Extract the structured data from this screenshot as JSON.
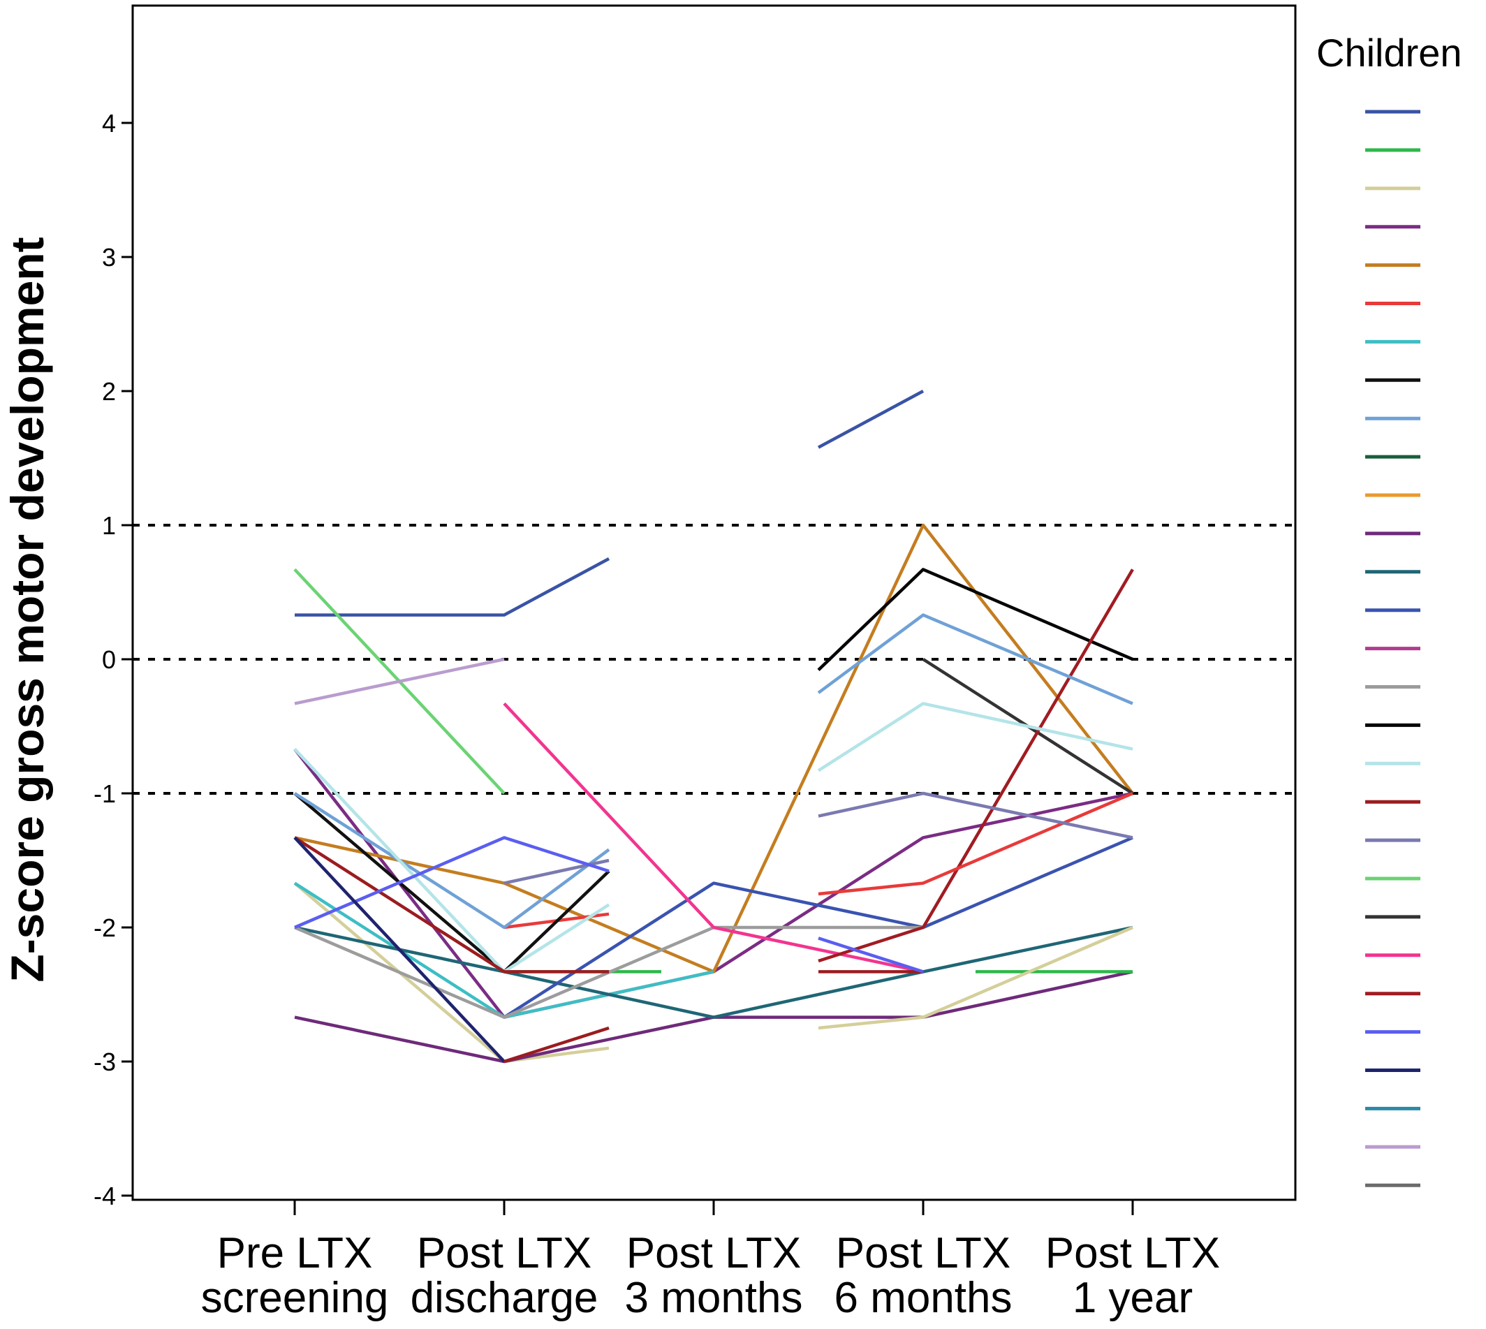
{
  "chart_data": {
    "type": "line",
    "title": "",
    "xlabel": "",
    "ylabel": "Z-score gross motor development",
    "ylim": [
      -4,
      4.9
    ],
    "yticks": [
      -4,
      -3,
      -2,
      -1,
      0,
      1,
      2,
      3,
      4
    ],
    "categories": [
      [
        "Pre LTX",
        "screening"
      ],
      [
        "Post LTX",
        "discharge"
      ],
      [
        "Post LTX",
        "3 months"
      ],
      [
        "Post LTX",
        "6 months"
      ],
      [
        "Post LTX",
        "1 year"
      ]
    ],
    "reference_lines": [
      1,
      0,
      -1
    ],
    "grid": false,
    "legend": {
      "title": "Children",
      "placement": "right"
    },
    "series": [
      {
        "color": "#3a53a4",
        "points": [
          [
            0,
            0.33
          ],
          [
            1,
            0.33
          ],
          [
            1.5,
            0.75
          ]
        ]
      },
      {
        "color": "#2db84a",
        "points": [
          [
            1,
            -2.33
          ],
          [
            1.75,
            -2.33
          ]
        ]
      },
      {
        "color": "#d4cf9a",
        "points": [
          [
            0,
            -1.67
          ],
          [
            1,
            -3.0
          ],
          [
            1.5,
            -2.9
          ]
        ]
      },
      {
        "color": "#7b2c84",
        "points": [
          [
            0,
            -0.67
          ],
          [
            1,
            -2.67
          ],
          [
            2,
            -2.33
          ],
          [
            3,
            -1.33
          ],
          [
            4,
            -1.0
          ]
        ]
      },
      {
        "color": "#c47d1f",
        "points": [
          [
            0,
            -1.33
          ],
          [
            1,
            -1.67
          ],
          [
            2,
            -2.33
          ],
          [
            3,
            1.0
          ],
          [
            4,
            -1.0
          ]
        ]
      },
      {
        "color": "#e83a3a",
        "points": [
          [
            1,
            -2.0
          ],
          [
            1.5,
            -1.9
          ]
        ]
      },
      {
        "color": "#3dbec4",
        "points": [
          [
            0,
            -1.67
          ],
          [
            1,
            -2.67
          ],
          [
            2,
            -2.33
          ]
        ]
      },
      {
        "color": "#111111",
        "points": [
          [
            0,
            -1.0
          ],
          [
            1,
            -2.33
          ],
          [
            1.5,
            -1.58
          ]
        ]
      },
      {
        "color": "#6fa1d6",
        "points": [
          [
            0,
            -1.0
          ],
          [
            1,
            -2.0
          ],
          [
            1.5,
            -1.42
          ]
        ]
      },
      {
        "color": "#1b5e3b",
        "points": []
      },
      {
        "color": "#eb9a2e",
        "points": []
      },
      {
        "color": "#6e2a7a",
        "points": [
          [
            0,
            -2.67
          ],
          [
            1,
            -3.0
          ],
          [
            2,
            -2.67
          ],
          [
            3,
            -2.67
          ],
          [
            4,
            -2.33
          ]
        ]
      },
      {
        "color": "#1f6675",
        "points": [
          [
            0,
            -2.0
          ],
          [
            1,
            -2.33
          ],
          [
            2,
            -2.67
          ],
          [
            3,
            -2.33
          ],
          [
            4,
            -2.0
          ]
        ]
      },
      {
        "color": "#3a53b0",
        "points": [
          [
            1,
            -2.67
          ],
          [
            2,
            -1.67
          ],
          [
            3,
            -2.0
          ],
          [
            4,
            -1.33
          ]
        ]
      },
      {
        "color": "#b03b91",
        "points": []
      },
      {
        "color": "#9c9c9c",
        "points": [
          [
            0,
            -2.0
          ],
          [
            1,
            -2.67
          ],
          [
            2,
            -2.0
          ],
          [
            3,
            -2.0
          ]
        ]
      },
      {
        "color": "#050505",
        "points": [
          [
            2.5,
            -0.08
          ],
          [
            3,
            0.67
          ],
          [
            4,
            0.0
          ]
        ]
      },
      {
        "color": "#b3e4e8",
        "points": [
          [
            0,
            -0.67
          ],
          [
            1,
            -2.33
          ],
          [
            1.5,
            -1.83
          ]
        ]
      },
      {
        "color": "#9b1c20",
        "points": [
          [
            0,
            -1.33
          ],
          [
            1,
            -2.33
          ],
          [
            1.5,
            -2.33
          ]
        ]
      },
      {
        "color": "#7a79b0",
        "points": [
          [
            1,
            -1.67
          ],
          [
            1.5,
            -1.5
          ]
        ]
      },
      {
        "color": "#6bd373",
        "points": [
          [
            0,
            0.67
          ],
          [
            1,
            -1.0
          ]
        ]
      },
      {
        "color": "#333333",
        "points": [
          [
            3,
            0.0
          ],
          [
            4,
            -1.0
          ]
        ]
      },
      {
        "color": "#f2358f",
        "points": [
          [
            1,
            -0.33
          ],
          [
            2,
            -2.0
          ],
          [
            3,
            -2.33
          ]
        ]
      },
      {
        "color": "#a01c22",
        "points": [
          [
            2.5,
            -2.25
          ],
          [
            3,
            -2.0
          ],
          [
            4,
            0.67
          ]
        ]
      },
      {
        "color": "#5a5ef0",
        "points": [
          [
            0,
            -2.0
          ],
          [
            1,
            -1.33
          ],
          [
            1.5,
            -1.58
          ]
        ]
      },
      {
        "color": "#1f236e",
        "points": [
          [
            0,
            -1.33
          ],
          [
            1,
            -3.0
          ]
        ]
      },
      {
        "color": "#2a89a6",
        "points": []
      },
      {
        "color": "#b99ccf",
        "points": [
          [
            0,
            -0.33
          ],
          [
            1,
            0.0
          ]
        ]
      },
      {
        "color": "#6b6b6b",
        "points": []
      }
    ],
    "extra_segments": [
      {
        "color": "#3a53a4",
        "points": [
          [
            2.5,
            1.58
          ],
          [
            3,
            2.0
          ]
        ]
      },
      {
        "color": "#2db84a",
        "points": [
          [
            3.25,
            -2.33
          ],
          [
            4,
            -2.33
          ]
        ]
      },
      {
        "color": "#d4cf9a",
        "points": [
          [
            2.5,
            -2.75
          ],
          [
            3,
            -2.67
          ],
          [
            4,
            -2.0
          ]
        ]
      },
      {
        "color": "#e83a3a",
        "points": [
          [
            2.5,
            -1.75
          ],
          [
            3,
            -1.67
          ],
          [
            4,
            -1.0
          ]
        ]
      },
      {
        "color": "#6fa1d6",
        "points": [
          [
            2.5,
            -0.25
          ],
          [
            3,
            0.33
          ],
          [
            4,
            -0.33
          ]
        ]
      },
      {
        "color": "#b3e4e8",
        "points": [
          [
            2.5,
            -0.83
          ],
          [
            3,
            -0.33
          ],
          [
            4,
            -0.67
          ]
        ]
      },
      {
        "color": "#7a79b0",
        "points": [
          [
            2.5,
            -1.17
          ],
          [
            3,
            -1.0
          ],
          [
            4,
            -1.33
          ]
        ]
      },
      {
        "color": "#9b1c20",
        "points": [
          [
            2.5,
            -2.33
          ],
          [
            3,
            -2.33
          ]
        ]
      },
      {
        "color": "#5a5ef0",
        "points": [
          [
            2.5,
            -2.08
          ],
          [
            3,
            -2.33
          ]
        ]
      },
      {
        "color": "#9b1c20",
        "points": [
          [
            1,
            -3.0
          ],
          [
            1.5,
            -2.75
          ]
        ]
      }
    ]
  }
}
